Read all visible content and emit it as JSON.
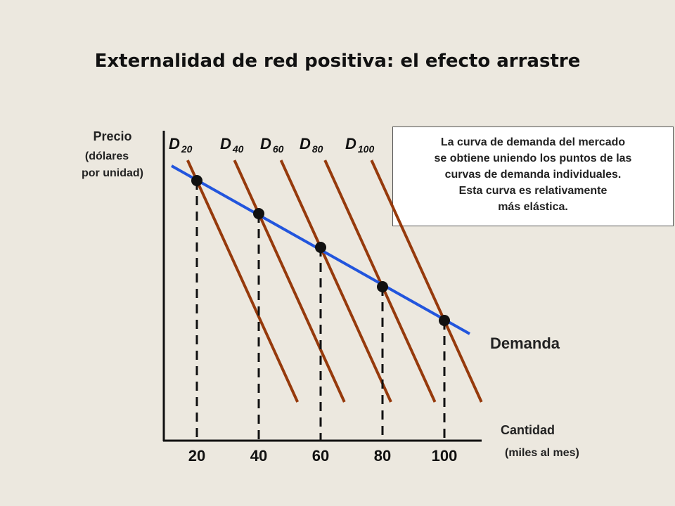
{
  "chart_data": {
    "type": "line",
    "title": "Externalidad de red positiva: el efecto arrastre",
    "ylabel": [
      "Precio",
      "(dólares",
      "por unidad)"
    ],
    "xlabel": [
      "Cantidad",
      "(miles al mes)"
    ],
    "x_ticks": [
      "20",
      "40",
      "60",
      "80",
      "100"
    ],
    "individual_demand_curves": [
      {
        "name": "D",
        "sub": "20"
      },
      {
        "name": "D",
        "sub": "40"
      },
      {
        "name": "D",
        "sub": "60"
      },
      {
        "name": "D",
        "sub": "80"
      },
      {
        "name": "D",
        "sub": "100"
      }
    ],
    "market_demand": {
      "name": "Demanda",
      "points": [
        {
          "x": 20
        },
        {
          "x": 40
        },
        {
          "x": 60
        },
        {
          "x": 80
        },
        {
          "x": 100
        }
      ]
    },
    "annotation": [
      "La curva de demanda del mercado",
      "se obtiene uniendo los puntos de las",
      "curvas de demanda individuales.",
      "Esta curva es relativamente",
      "más elástica."
    ],
    "colors": {
      "individual": "#963a0c",
      "market": "#2255dd",
      "axis": "#111111",
      "dashed": "#111111"
    }
  }
}
